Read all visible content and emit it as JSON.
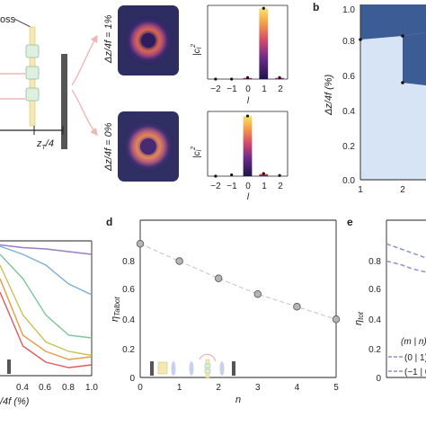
{
  "panels": {
    "a": {
      "optics_label": "oss",
      "distance_label": "z",
      "distance_sub": "T",
      "distance_tail": "/4",
      "row1_label": "Δz/4f = 1%",
      "row2_label": "Δz/4f = 0%",
      "ylabel": "|c",
      "ylabel_sub": "l",
      "ylabel_sup": "2",
      "xlabel": "l",
      "ticks": [
        "−2",
        "−1",
        "0",
        "1",
        "2"
      ]
    },
    "b": {
      "letter": "b",
      "ylabel": "Δz/4f (%)",
      "yticks": [
        "1.0",
        "0.8",
        "0.6",
        "0.4",
        "0.2",
        "0.0"
      ],
      "xticks": [
        "1",
        "2"
      ]
    },
    "c": {
      "xticks": [
        "0.4",
        "0.6",
        "0.8",
        "1.0"
      ],
      "xlabel": "/4f (%)"
    },
    "d": {
      "letter": "d",
      "ylabel": "η",
      "ylabel_sub": "Talbot",
      "yticks": [
        "0.8",
        "0.6",
        "0.4",
        "0.2",
        "0"
      ],
      "xticks": [
        "0",
        "1",
        "2",
        "3",
        "4",
        "5"
      ],
      "xlabel": "n"
    },
    "e": {
      "letter": "e",
      "ylabel": "η",
      "ylabel_sub": "tot",
      "yticks": [
        "0.8",
        "0.6",
        "0.4",
        "0.2",
        "0"
      ],
      "legend_title": "(m | n)",
      "legend_items": [
        "(0 | 1)",
        "(−1 | 0)"
      ]
    }
  },
  "chart_data": [
    {
      "panel": "a-top",
      "type": "bar",
      "categories": [
        "−2",
        "−1",
        "0",
        "1",
        "2"
      ],
      "values": [
        0.0,
        0.0,
        0.02,
        0.96,
        0.02
      ],
      "ylim": [
        0,
        1
      ],
      "xlabel": "l",
      "ylabel": "|c_l|^2"
    },
    {
      "panel": "a-bottom",
      "type": "bar",
      "categories": [
        "−2",
        "−1",
        "0",
        "1",
        "2"
      ],
      "values": [
        0.0,
        0.02,
        0.93,
        0.04,
        0.01
      ],
      "ylim": [
        0,
        1
      ],
      "xlabel": "l",
      "ylabel": "|c_l|^2"
    },
    {
      "panel": "d",
      "type": "scatter",
      "x": [
        0,
        1,
        2,
        3,
        4,
        5
      ],
      "y": [
        0.85,
        0.74,
        0.63,
        0.53,
        0.45,
        0.37
      ],
      "xlim": [
        0,
        5
      ],
      "ylim": [
        0,
        1.0
      ],
      "xlabel": "n",
      "ylabel": "η_Talbot"
    },
    {
      "panel": "c",
      "type": "line",
      "xlim": [
        0.2,
        1.0
      ],
      "ylim": [
        0,
        1
      ],
      "series": [
        {
          "color": "#9a7cc0",
          "x": [
            0.2,
            0.4,
            0.6,
            0.8,
            1.0
          ],
          "y": [
            0.97,
            0.95,
            0.94,
            0.92,
            0.9
          ]
        },
        {
          "color": "#7bb0d8",
          "x": [
            0.2,
            0.4,
            0.6,
            0.8,
            1.0
          ],
          "y": [
            0.96,
            0.9,
            0.82,
            0.68,
            0.6
          ]
        },
        {
          "color": "#7cc49a",
          "x": [
            0.2,
            0.4,
            0.6,
            0.8,
            1.0
          ],
          "y": [
            0.9,
            0.72,
            0.45,
            0.3,
            0.28
          ]
        },
        {
          "color": "#c7c25a",
          "x": [
            0.2,
            0.4,
            0.6,
            0.8,
            1.0
          ],
          "y": [
            0.82,
            0.45,
            0.25,
            0.18,
            0.15
          ]
        },
        {
          "color": "#e89a4a",
          "x": [
            0.2,
            0.4,
            0.6,
            0.8,
            1.0
          ],
          "y": [
            0.72,
            0.3,
            0.18,
            0.12,
            0.14
          ]
        },
        {
          "color": "#e05a5a",
          "x": [
            0.2,
            0.4,
            0.6,
            0.8,
            1.0
          ],
          "y": [
            0.62,
            0.22,
            0.1,
            0.06,
            0.08
          ]
        }
      ]
    },
    {
      "panel": "e",
      "type": "line",
      "ylim": [
        0,
        1
      ],
      "series": [
        {
          "name": "(0 | 1)",
          "color": "#8a93c8",
          "values": [
            0.85,
            0.82,
            0.79,
            0.76
          ]
        },
        {
          "name": "(−1 | 0)",
          "color": "#8a93c8",
          "values": [
            0.74,
            0.72,
            0.69,
            0.67
          ]
        }
      ]
    }
  ],
  "colors": {
    "b_dark": "#3c5c96",
    "b_light": "#d6e4f6",
    "axis": "#222222",
    "bar_gradient": [
      "#fbe26a",
      "#f2a24a",
      "#d34a6b",
      "#6a2c8a",
      "#1e1447"
    ]
  }
}
